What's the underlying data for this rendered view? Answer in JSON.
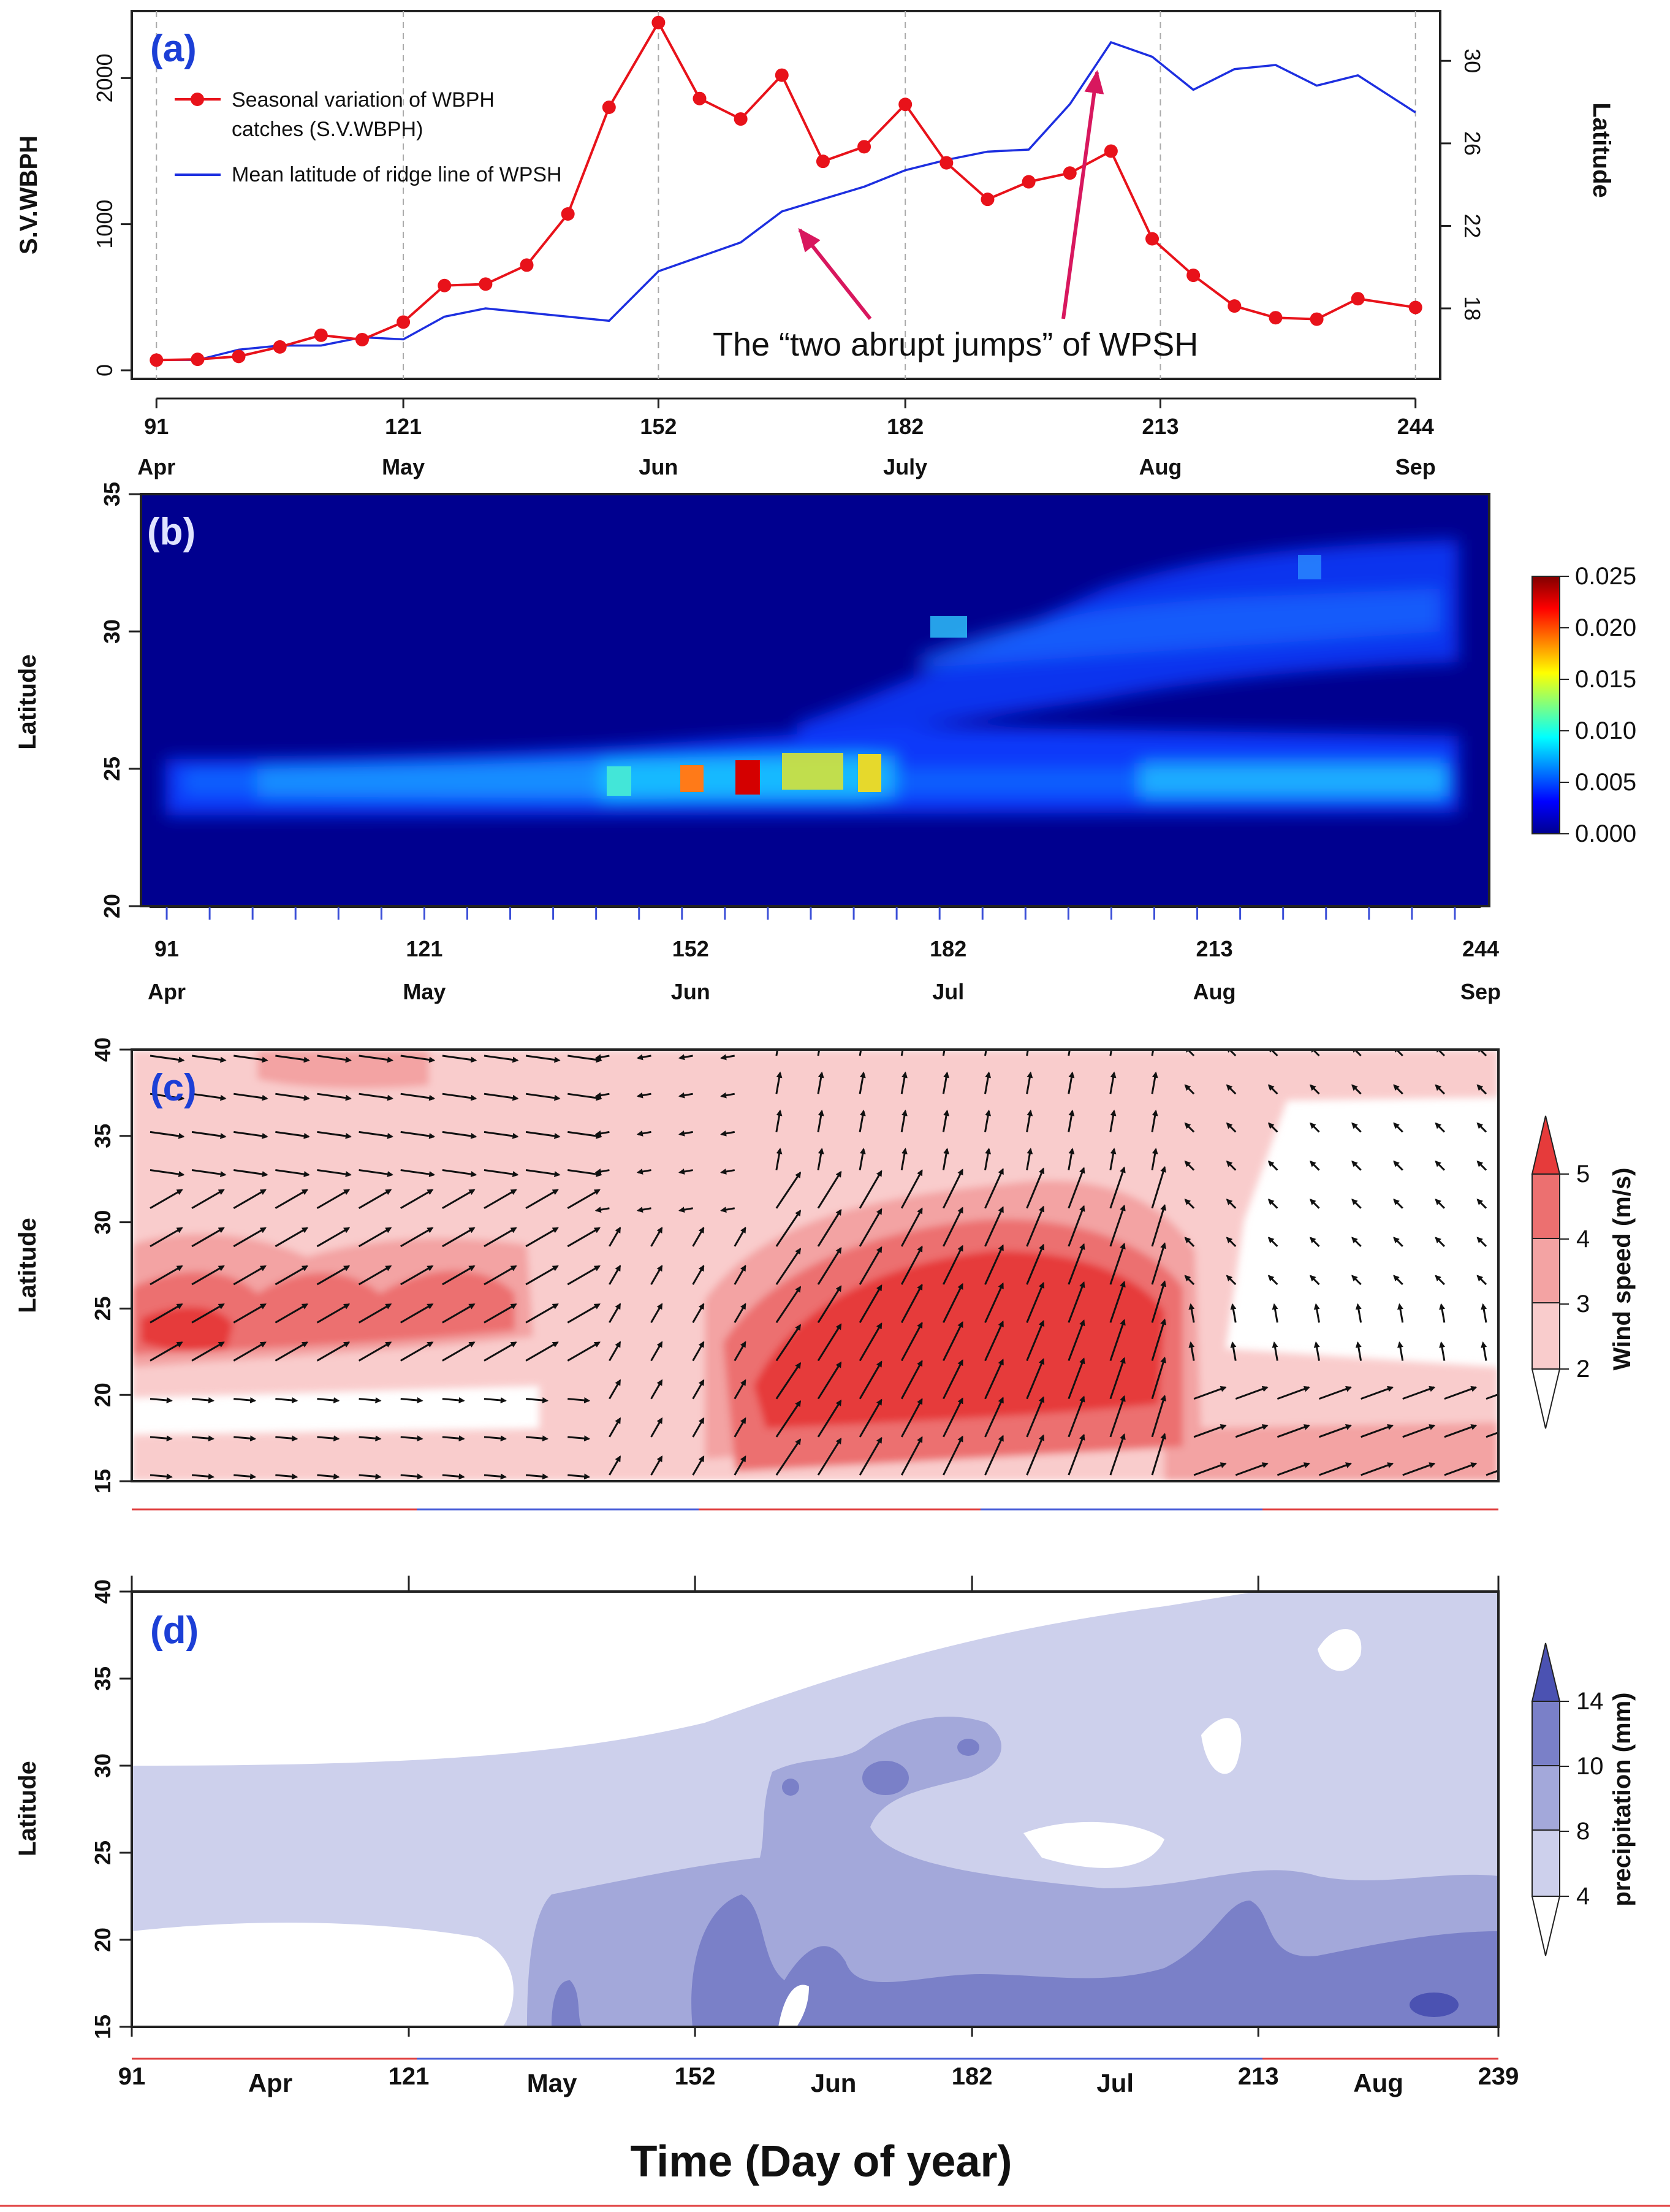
{
  "chart_data": [
    {
      "panel": "a",
      "type": "line",
      "label": "(a)",
      "x_ticks": [
        91,
        121,
        152,
        182,
        213,
        244
      ],
      "x_month_labels": [
        "Apr",
        "May",
        "Jun",
        "July",
        "Aug",
        "Sep"
      ],
      "xlim": [
        91,
        244
      ],
      "ylabel_left": "S.V.WBPH",
      "ylabel_right": "Latitude",
      "ylim_left": [
        0,
        2400
      ],
      "yticks_left": [
        0,
        1000,
        2000
      ],
      "ylim_right": [
        15,
        32
      ],
      "yticks_right": [
        18,
        22,
        26,
        30
      ],
      "series": [
        {
          "name": "Seasonal variation of WBPH catches (S.V.WBPH)",
          "legend_line1": "Seasonal variation of WBPH",
          "legend_line2": "catches (S.V.WBPH)",
          "axis": "left",
          "color": "#e8121a",
          "x": [
            91,
            96,
            101,
            106,
            111,
            116,
            121,
            126,
            131,
            136,
            141,
            146,
            152,
            157,
            162,
            167,
            172,
            177,
            182,
            187,
            192,
            197,
            202,
            207,
            212,
            217,
            222,
            227,
            232,
            237,
            244
          ],
          "values": [
            70,
            75,
            95,
            160,
            240,
            210,
            330,
            580,
            590,
            720,
            1070,
            1800,
            2380,
            1860,
            1720,
            2020,
            1430,
            1530,
            1820,
            1420,
            1170,
            1290,
            1350,
            1500,
            900,
            650,
            440,
            360,
            350,
            490,
            430
          ]
        },
        {
          "name": "Mean latitude of ridge line of WPSH",
          "legend_line1": "Mean latitude of ridge line of WPSH",
          "axis": "right",
          "color": "#1d2fe0",
          "x": [
            91,
            96,
            101,
            106,
            111,
            116,
            121,
            126,
            131,
            136,
            141,
            146,
            152,
            157,
            162,
            167,
            172,
            177,
            182,
            187,
            192,
            197,
            202,
            207,
            212,
            217,
            222,
            227,
            232,
            237,
            244
          ],
          "values": [
            15.5,
            15.5,
            16.0,
            16.2,
            16.2,
            16.6,
            16.5,
            17.6,
            18.0,
            17.8,
            17.6,
            17.4,
            19.8,
            20.5,
            21.2,
            22.7,
            23.3,
            23.9,
            24.7,
            25.2,
            25.6,
            25.7,
            27.9,
            30.9,
            30.2,
            28.6,
            29.6,
            29.8,
            28.8,
            29.3,
            27.5
          ]
        }
      ],
      "annotation": "The “two abrupt jumps” of WPSH",
      "annotation_arrow_targets_day": [
        167,
        202
      ]
    },
    {
      "panel": "b",
      "type": "heatmap",
      "label": "(b)",
      "ylabel": "Latitude",
      "ylim": [
        20,
        35
      ],
      "yticks": [
        20,
        25,
        30,
        35
      ],
      "x_ticks": [
        91,
        121,
        152,
        182,
        213,
        244
      ],
      "x_month_labels": [
        "Apr",
        "May",
        "Jun",
        "Jul",
        "Aug",
        "Sep"
      ],
      "xlim": [
        88,
        245
      ],
      "colorbar_ticks": [
        "0.025",
        "0.020",
        "0.015",
        "0.010",
        "0.005",
        "0.000"
      ],
      "color_range": [
        0,
        0.025
      ],
      "band_lower_center_lat": 24.5,
      "peak_cells": [
        {
          "day": 152,
          "lat": 24.8,
          "value": 0.018
        },
        {
          "day": 157,
          "lat": 24.8,
          "value": 0.024
        }
      ]
    },
    {
      "panel": "c",
      "type": "heatmap",
      "label": "(c)",
      "ylabel": "Latitude",
      "ylim": [
        15,
        40
      ],
      "yticks": [
        15,
        20,
        25,
        30,
        35,
        40
      ],
      "colorbar_label": "Wind speed (m/s)",
      "colorbar_ticks": [
        "5",
        "4",
        "3",
        "2"
      ],
      "levels": [
        2,
        3,
        4,
        5
      ],
      "colors": [
        "#ffffff",
        "#f9cccc",
        "#f3a3a3",
        "#ec7070",
        "#e63b3b"
      ]
    },
    {
      "panel": "d",
      "type": "heatmap",
      "label": "(d)",
      "ylabel": "Latitude",
      "ylim": [
        15,
        40
      ],
      "yticks": [
        15,
        20,
        25,
        30,
        35,
        40
      ],
      "x_ticks": [
        91,
        121,
        152,
        182,
        213,
        239
      ],
      "x_month_labels": [
        "Apr",
        "May",
        "Jun",
        "Jul",
        "Aug"
      ],
      "xlim": [
        91,
        239
      ],
      "colorbar_label": "precipitation (mm)",
      "colorbar_ticks": [
        "14",
        "10",
        "8",
        "4"
      ],
      "levels": [
        4,
        8,
        10,
        14
      ],
      "colors": [
        "#ffffff",
        "#cdd0ec",
        "#a3a8da",
        "#7a80c8",
        "#4b52b2"
      ]
    }
  ],
  "x_axis_title": "Time (Day of year)"
}
